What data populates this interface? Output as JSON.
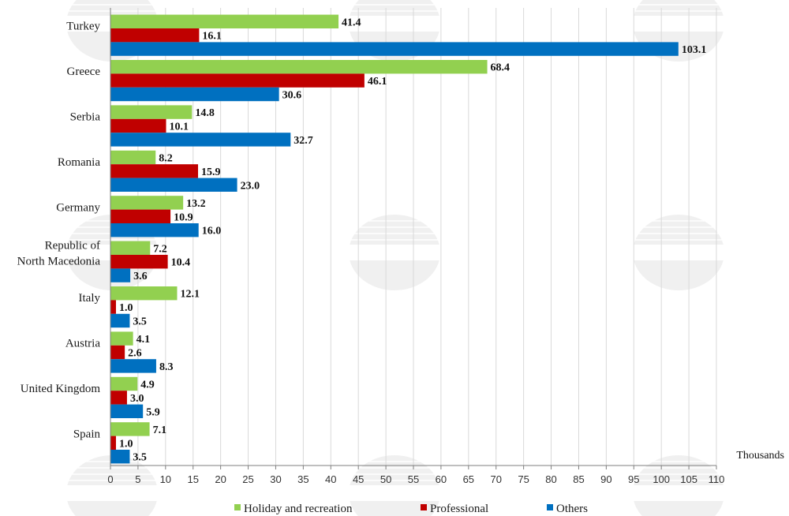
{
  "chart_data": {
    "type": "bar",
    "orientation": "horizontal",
    "categories": [
      "Turkey",
      "Greece",
      "Serbia",
      "Romania",
      "Germany",
      "Republic of North Macedonia",
      "Italy",
      "Austria",
      "United Kingdom",
      "Spain"
    ],
    "category_lines": [
      [
        "Turkey"
      ],
      [
        "Greece"
      ],
      [
        "Serbia"
      ],
      [
        "Romania"
      ],
      [
        "Germany"
      ],
      [
        "Republic of",
        "North Macedonia"
      ],
      [
        "Italy"
      ],
      [
        "Austria"
      ],
      [
        "United Kingdom"
      ],
      [
        "Spain"
      ]
    ],
    "series": [
      {
        "name": "Holiday and recreation",
        "color": "#92d050",
        "values": [
          41.4,
          68.4,
          14.8,
          8.2,
          13.2,
          7.2,
          12.1,
          4.1,
          4.9,
          7.1
        ]
      },
      {
        "name": "Professional",
        "color": "#c00000",
        "values": [
          16.1,
          46.1,
          10.1,
          15.9,
          10.9,
          10.4,
          1.0,
          2.6,
          3.0,
          1.0
        ]
      },
      {
        "name": "Others",
        "color": "#0070c0",
        "values": [
          103.1,
          30.6,
          32.7,
          23.0,
          16.0,
          3.6,
          3.5,
          8.3,
          5.9,
          3.5
        ]
      }
    ],
    "xlim": [
      0,
      110
    ],
    "xticks": [
      0,
      5,
      10,
      15,
      20,
      25,
      30,
      35,
      40,
      45,
      50,
      55,
      60,
      65,
      70,
      75,
      80,
      85,
      90,
      95,
      100,
      105,
      110
    ],
    "x_unit_label": "Thousands",
    "grid": "vertical",
    "legend": "bottom",
    "watermark": "BTA"
  }
}
